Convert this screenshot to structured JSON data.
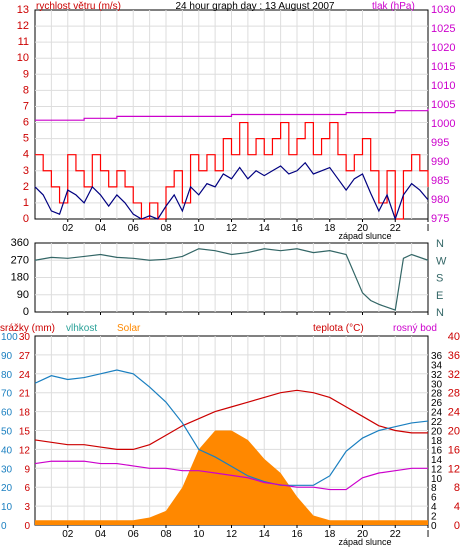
{
  "chart_data": [
    {
      "type": "line",
      "title": "24 hour graph day : 13 August 2007",
      "ylabel": "rychlost větru (m/s)",
      "y2label": "tlak (hPa)",
      "xlabel": "západ slunce",
      "x_ticks": [
        "02",
        "04",
        "06",
        "08",
        "10",
        "12",
        "14",
        "16",
        "18",
        "20",
        "22",
        "I"
      ],
      "xlim": [
        0,
        24
      ],
      "ylim": [
        0,
        13
      ],
      "y2lim": [
        975,
        1030
      ],
      "y_ticks": [
        "0",
        "1",
        "2",
        "3",
        "4",
        "5",
        "6",
        "7",
        "8",
        "9",
        "10",
        "11",
        "12",
        "13"
      ],
      "y2_ticks": [
        "975",
        "980",
        "985",
        "990",
        "995",
        "1000",
        "1005",
        "1010",
        "1015",
        "1020",
        "1025",
        "1030"
      ],
      "grid": true,
      "colors": {
        "gust": "#ff0000",
        "wind": "#000080",
        "pressure": "#cc00cc",
        "axis_left": "#cc0000",
        "axis_right": "#cc00cc"
      },
      "series": [
        {
          "axis": "right",
          "x": [
            0,
            1,
            2,
            3,
            4,
            5,
            6,
            7,
            8,
            9,
            10,
            11,
            12,
            13,
            14,
            15,
            16,
            17,
            18,
            19,
            20,
            21,
            22,
            23,
            24
          ],
          "values": [
            1001,
            1001,
            1001,
            1001.5,
            1001.5,
            1002,
            1002,
            1002,
            1002,
            1002,
            1002,
            1002,
            1002.5,
            1002.5,
            1002.5,
            1002.5,
            1002.5,
            1002.5,
            1002.5,
            1003,
            1003,
            1003,
            1003.5,
            1003.5,
            1004
          ]
        },
        {
          "axis": "left",
          "x": [
            0,
            0.5,
            1,
            1.5,
            2,
            2.5,
            3,
            3.5,
            4,
            4.5,
            5,
            5.5,
            6,
            6.5,
            7,
            7.5,
            8,
            8.5,
            9,
            9.5,
            10,
            10.5,
            11,
            11.5,
            12,
            12.5,
            13,
            13.5,
            14,
            14.5,
            15,
            15.5,
            16,
            16.5,
            17,
            17.5,
            18,
            18.5,
            19,
            19.5,
            20,
            20.5,
            21,
            21.5,
            22,
            22.5,
            23,
            23.5,
            24
          ],
          "values": [
            4,
            3,
            2,
            1,
            4,
            3,
            2,
            4,
            3,
            2,
            3,
            2,
            1,
            0,
            1,
            0,
            2,
            3,
            1,
            4,
            3,
            4,
            3,
            5,
            4,
            6,
            4,
            5,
            4,
            5,
            6,
            4,
            5,
            6,
            4,
            5,
            6,
            4,
            3,
            4,
            5,
            3,
            1,
            3,
            0,
            3,
            4,
            3,
            2
          ]
        },
        {
          "axis": "left",
          "x": [
            0,
            0.5,
            1,
            1.5,
            2,
            2.5,
            3,
            3.5,
            4,
            4.5,
            5,
            5.5,
            6,
            6.5,
            7,
            7.5,
            8,
            8.5,
            9,
            9.5,
            10,
            10.5,
            11,
            11.5,
            12,
            12.5,
            13,
            13.5,
            14,
            14.5,
            15,
            15.5,
            16,
            16.5,
            17,
            17.5,
            18,
            18.5,
            19,
            19.5,
            20,
            20.5,
            21,
            21.5,
            22,
            22.5,
            23,
            23.5,
            24
          ],
          "values": [
            2,
            1.5,
            0.5,
            0.3,
            1.8,
            1.5,
            1,
            2,
            1.5,
            0.8,
            1.5,
            1,
            0.3,
            0,
            0.2,
            0,
            0.8,
            1.5,
            0.5,
            2,
            1.5,
            2.2,
            2,
            2.8,
            2.5,
            3.2,
            2.5,
            3,
            2.7,
            3,
            3.3,
            2.8,
            3,
            3.5,
            2.8,
            3,
            3.2,
            2.5,
            1.8,
            2.5,
            2.8,
            1.6,
            0.5,
            1.5,
            0,
            1.5,
            2.2,
            1.8,
            1.2
          ]
        }
      ]
    },
    {
      "type": "scatter",
      "ylabel_right": [
        "N",
        "W",
        "S",
        "E",
        "N"
      ],
      "y_ticks": [
        "0",
        "90",
        "180",
        "270",
        "360"
      ],
      "ylim": [
        0,
        360
      ],
      "xlim": [
        0,
        24
      ],
      "grid": true,
      "colors": {
        "direction": "#336666"
      },
      "series": [
        {
          "x": [
            0,
            1,
            2,
            3,
            4,
            5,
            6,
            7,
            8,
            9,
            10,
            11,
            12,
            13,
            14,
            15,
            16,
            17,
            18,
            19,
            20,
            20.5,
            21,
            22,
            22.5,
            23,
            24
          ],
          "values": [
            270,
            285,
            280,
            290,
            300,
            285,
            280,
            270,
            275,
            290,
            330,
            320,
            300,
            310,
            330,
            320,
            330,
            310,
            320,
            300,
            100,
            60,
            40,
            10,
            280,
            300,
            270
          ]
        }
      ]
    },
    {
      "type": "line",
      "labels": {
        "precip": "srážky (mm)",
        "humidity": "vlhkost",
        "solar": "Solar",
        "temperature": "teplota (°C)",
        "dewpoint": "rosný bod"
      },
      "xlabel": "západ slunce",
      "x_ticks": [
        "02",
        "04",
        "06",
        "08",
        "10",
        "12",
        "14",
        "16",
        "18",
        "20",
        "22",
        "I"
      ],
      "xlim": [
        0,
        24
      ],
      "ylim": [
        0,
        40
      ],
      "ylim_precip": [
        0,
        30
      ],
      "ylim_humidity": [
        0,
        100
      ],
      "y_ticks_precip": [
        "0",
        "3",
        "6",
        "9",
        "12",
        "15",
        "18",
        "21",
        "24",
        "27",
        "30"
      ],
      "y_ticks_humidity": [
        "0",
        "10",
        "20",
        "30",
        "40",
        "50",
        "60",
        "70",
        "80",
        "90",
        "100"
      ],
      "y_ticks_extra": [
        "0",
        "2",
        "4",
        "6",
        "8",
        "10",
        "12",
        "14",
        "16",
        "18",
        "20",
        "22",
        "24",
        "26",
        "28",
        "30",
        "32",
        "34",
        "36"
      ],
      "y_ticks_right": [
        "0",
        "4",
        "8",
        "12",
        "16",
        "20",
        "24",
        "28",
        "32",
        "36",
        "40"
      ],
      "grid": true,
      "colors": {
        "temperature": "#cc0000",
        "humidity": "#1a7fc0",
        "dewpoint": "#cc00cc",
        "solar": "#ff8800",
        "precip_label": "#cc0000",
        "humidity_label": "#2aa198",
        "solar_label": "#ff8800",
        "dew_label": "#cc00cc"
      },
      "series": [
        {
          "axis": "right",
          "x": [
            0,
            1,
            2,
            3,
            4,
            5,
            6,
            7,
            8,
            9,
            10,
            11,
            12,
            13,
            14,
            15,
            16,
            17,
            18,
            19,
            20,
            21,
            22,
            23,
            24
          ],
          "values": [
            18,
            17.5,
            17,
            17,
            16.5,
            16,
            16,
            17,
            19,
            21,
            22.5,
            24,
            25,
            26,
            27,
            28,
            28.5,
            28,
            27,
            25,
            23,
            21,
            20,
            19.5,
            19.5
          ]
        },
        {
          "axis": "humidity",
          "x": [
            0,
            1,
            2,
            3,
            4,
            5,
            6,
            7,
            8,
            9,
            10,
            11,
            12,
            13,
            14,
            15,
            16,
            17,
            18,
            19,
            20,
            21,
            22,
            23,
            24
          ],
          "values": [
            75,
            79,
            77,
            78,
            80,
            82,
            80,
            73,
            65,
            54,
            40,
            36,
            31,
            26,
            23,
            21,
            21,
            21,
            26,
            39,
            46,
            50,
            52,
            54,
            55
          ]
        },
        {
          "axis": "right",
          "x": [
            0,
            1,
            2,
            3,
            4,
            5,
            6,
            7,
            8,
            9,
            10,
            11,
            12,
            13,
            14,
            15,
            16,
            17,
            18,
            19,
            20,
            21,
            22,
            23,
            24
          ],
          "values": [
            13,
            13.5,
            13.5,
            13.5,
            13,
            13,
            12.5,
            12,
            12,
            11.5,
            11.5,
            11,
            10.5,
            10,
            9,
            8.5,
            8,
            8,
            7.5,
            7.5,
            10,
            11,
            11.5,
            12,
            12
          ]
        },
        {
          "axis": "solar",
          "x": [
            0,
            4,
            6,
            7,
            8,
            9,
            10,
            11,
            12,
            13,
            14,
            15,
            16,
            17,
            18,
            19,
            20,
            24
          ],
          "values": [
            5,
            5,
            5,
            8,
            15,
            40,
            80,
            100,
            100,
            90,
            70,
            55,
            30,
            10,
            5,
            5,
            5,
            5
          ]
        }
      ]
    }
  ]
}
